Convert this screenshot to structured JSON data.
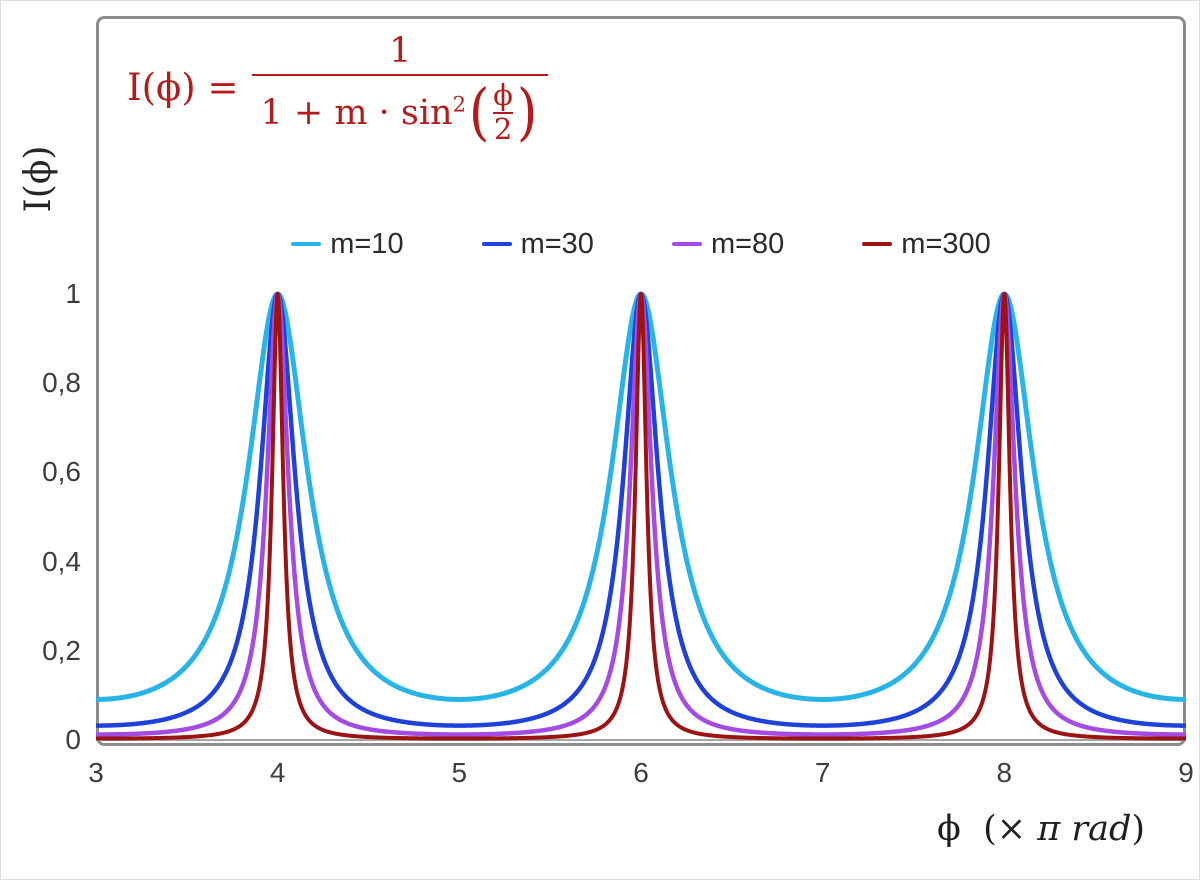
{
  "formula": {
    "lhs": "I(ϕ) =",
    "numerator": "1",
    "denom_prefix": "1 + m · sin",
    "sin_exponent": "2",
    "open_paren": "(",
    "inner_numerator": "ϕ",
    "inner_denominator": "2",
    "close_paren": ")",
    "color": "#b41c1c"
  },
  "chart_data": {
    "type": "line",
    "title": "",
    "function": "I(ϕ) = 1 / (1 + m·sin²(ϕ·π/2)), with ϕ expressed in units of π rad",
    "ylabel": "I(ϕ)",
    "xlabel": {
      "phi": "ϕ",
      "rest_prefix": "(× ",
      "rest_italic": "π rad",
      "close": ")"
    },
    "x_range": [
      3,
      9
    ],
    "y_range": [
      0,
      1
    ],
    "y_axis_headroom_top": 1.62,
    "grid": false,
    "legend_position": "top-center",
    "peaks_at_x": [
      4,
      6,
      8
    ],
    "peak_value": 1,
    "x_ticks": [
      {
        "value": 3,
        "label": "3"
      },
      {
        "value": 4,
        "label": "4"
      },
      {
        "value": 5,
        "label": "5"
      },
      {
        "value": 6,
        "label": "6"
      },
      {
        "value": 7,
        "label": "7"
      },
      {
        "value": 8,
        "label": "8"
      },
      {
        "value": 9,
        "label": "9"
      }
    ],
    "y_ticks": [
      {
        "value": 0,
        "label": "0"
      },
      {
        "value": 0.2,
        "label": "0,2"
      },
      {
        "value": 0.4,
        "label": "0,4"
      },
      {
        "value": 0.6,
        "label": "0,6"
      },
      {
        "value": 0.8,
        "label": "0,8"
      },
      {
        "value": 1,
        "label": "1"
      }
    ],
    "series": [
      {
        "name": "m=10",
        "m": 10,
        "color": "#29B4E8",
        "stroke_width": 5
      },
      {
        "name": "m=30",
        "m": 30,
        "color": "#1E41DA",
        "stroke_width": 4.5
      },
      {
        "name": "m=80",
        "m": 80,
        "color": "#A34BE3",
        "stroke_width": 4.5
      },
      {
        "name": "m=300",
        "m": 300,
        "color": "#9C1313",
        "stroke_width": 4
      }
    ],
    "samples_per_unit": 400,
    "axis_color": "#a6a6a6",
    "border_color": "#8c8c8c",
    "tick_label_color": "#3d3d3d"
  }
}
